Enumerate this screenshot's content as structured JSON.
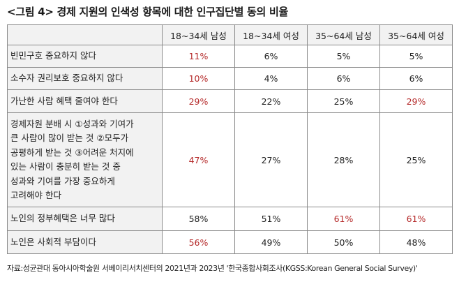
{
  "title": "<그림 4> 경제 지원의 인색성 항목에 대한 인구집단별 동의 비율",
  "table": {
    "headers": [
      "",
      "18~34세 남성",
      "18~34세 여성",
      "35~64세 남성",
      "35~64세 여성"
    ],
    "rows": [
      {
        "label": "빈민구호 중요하지 않다",
        "values": [
          "11%",
          "6%",
          "5%",
          "5%"
        ],
        "highlight": [
          true,
          false,
          false,
          false
        ]
      },
      {
        "label": "소수자 권리보호 중요하지 않다",
        "values": [
          "10%",
          "4%",
          "6%",
          "6%"
        ],
        "highlight": [
          true,
          false,
          false,
          false
        ]
      },
      {
        "label": "가난한 사람 혜택 줄여야 한다",
        "values": [
          "29%",
          "22%",
          "25%",
          "29%"
        ],
        "highlight": [
          true,
          false,
          false,
          true
        ]
      },
      {
        "label": "경제자원 분배 시 ①성과와 기여가\n큰 사람이 많이 받는 것 ②모두가\n공평하게 받는 것 ③어려운 처지에\n있는 사람이 충분히 받는 것 중\n성과와 기여를 가장 중요하게\n고려해야 한다",
        "values": [
          "47%",
          "27%",
          "28%",
          "25%"
        ],
        "highlight": [
          true,
          false,
          false,
          false
        ]
      },
      {
        "label": "노인의 정부혜택은 너무 많다",
        "values": [
          "58%",
          "51%",
          "61%",
          "61%"
        ],
        "highlight": [
          false,
          false,
          true,
          true
        ]
      },
      {
        "label": "노인은 사회적 부담이다",
        "values": [
          "56%",
          "49%",
          "50%",
          "48%"
        ],
        "highlight": [
          true,
          false,
          false,
          false
        ]
      }
    ]
  },
  "colors": {
    "highlight": "#b52a2a",
    "header_bg": "#f2f2f2",
    "border": "#8a8a8a"
  },
  "source": "자료:성균관대 동아시아학술원 서베이리서치센터의 2021년과 2023년 '한국종합사회조사(KGSS:Korean General Social Survey)'"
}
